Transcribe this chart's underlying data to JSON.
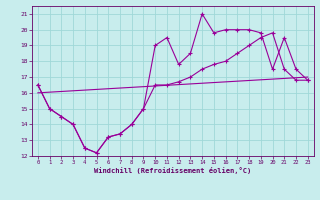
{
  "title": "",
  "xlabel": "Windchill (Refroidissement éolien,°C)",
  "ylabel": "",
  "bg_color": "#c8eded",
  "grid_color": "#a0d8d8",
  "line_color": "#990099",
  "xlim": [
    -0.5,
    23.5
  ],
  "ylim": [
    12,
    21.5
  ],
  "xticks": [
    0,
    1,
    2,
    3,
    4,
    5,
    6,
    7,
    8,
    9,
    10,
    11,
    12,
    13,
    14,
    15,
    16,
    17,
    18,
    19,
    20,
    21,
    22,
    23
  ],
  "yticks": [
    12,
    13,
    14,
    15,
    16,
    17,
    18,
    19,
    20,
    21
  ],
  "line1_x": [
    0,
    1,
    2,
    3,
    4,
    5,
    6,
    7,
    8,
    9,
    10,
    11,
    12,
    13,
    14,
    15,
    16,
    17,
    18,
    19,
    20,
    21,
    22,
    23
  ],
  "line1_y": [
    16.5,
    15.0,
    14.5,
    14.0,
    12.5,
    12.2,
    13.2,
    13.4,
    14.0,
    15.0,
    16.5,
    16.5,
    16.7,
    17.0,
    17.5,
    17.8,
    18.0,
    18.5,
    19.0,
    19.5,
    19.8,
    17.5,
    16.8,
    16.8
  ],
  "line2_x": [
    0,
    1,
    2,
    3,
    4,
    5,
    6,
    7,
    8,
    9,
    10,
    11,
    12,
    13,
    14,
    15,
    16,
    17,
    18,
    19,
    20,
    21,
    22,
    23
  ],
  "line2_y": [
    16.5,
    15.0,
    14.5,
    14.0,
    12.5,
    12.2,
    13.2,
    13.4,
    14.0,
    15.0,
    19.0,
    19.5,
    17.8,
    18.5,
    21.0,
    19.8,
    20.0,
    20.0,
    20.0,
    19.8,
    17.5,
    19.5,
    17.5,
    16.8
  ],
  "line3_x": [
    0,
    23
  ],
  "line3_y": [
    16.0,
    17.0
  ]
}
